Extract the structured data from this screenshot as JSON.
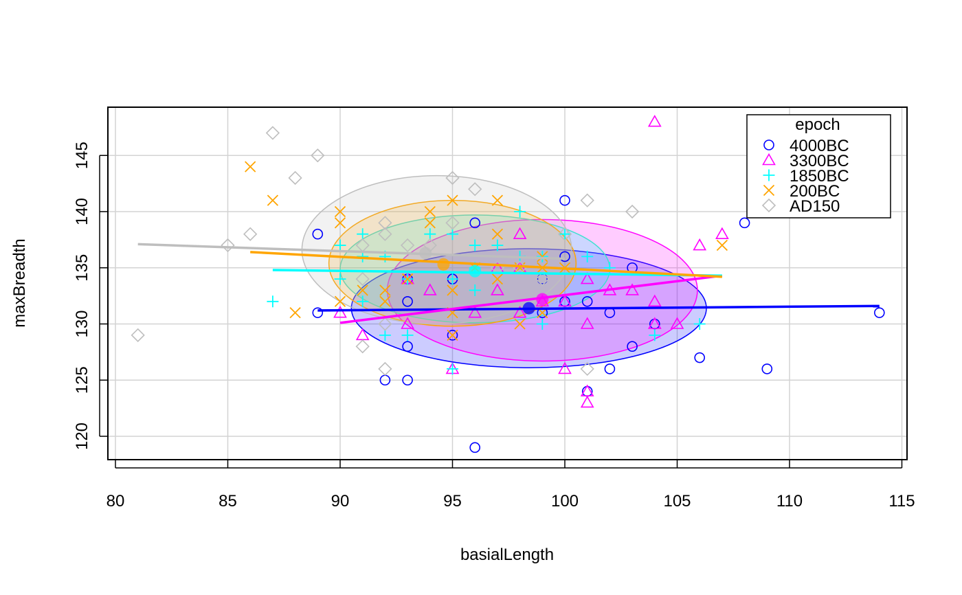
{
  "chart_data": {
    "type": "scatter",
    "xlabel": "basialLength",
    "ylabel": "maxBreadth",
    "xlim": [
      80,
      115
    ],
    "ylim": [
      118,
      149
    ],
    "x_ticks": [
      "80",
      "85",
      "90",
      "95",
      "100",
      "105",
      "110",
      "115"
    ],
    "y_ticks": [
      "120",
      "125",
      "130",
      "135",
      "140",
      "145"
    ],
    "grid": true,
    "legend": {
      "title": "epoch",
      "position": "top-right",
      "entries": [
        "4000BC",
        "3300BC",
        "1850BC",
        "200BC",
        "AD150"
      ]
    },
    "series": [
      {
        "name": "4000BC",
        "color": "#0000FF",
        "marker": "circle",
        "points": [
          [
            89,
            138
          ],
          [
            89,
            131
          ],
          [
            92,
            125
          ],
          [
            93,
            132
          ],
          [
            93,
            128
          ],
          [
            93,
            125
          ],
          [
            93,
            134
          ],
          [
            95,
            134
          ],
          [
            95,
            129
          ],
          [
            96,
            139
          ],
          [
            96,
            119
          ],
          [
            99,
            134
          ],
          [
            99,
            131
          ],
          [
            100,
            141
          ],
          [
            100,
            136
          ],
          [
            100,
            132
          ],
          [
            101,
            132
          ],
          [
            101,
            124
          ],
          [
            102,
            131
          ],
          [
            102,
            126
          ],
          [
            103,
            135
          ],
          [
            103,
            128
          ],
          [
            104,
            130
          ],
          [
            106,
            127
          ],
          [
            108,
            139
          ],
          [
            109,
            126
          ],
          [
            114,
            131
          ]
        ],
        "regression": [
          [
            89,
            131.2
          ],
          [
            114,
            131.6
          ]
        ],
        "ellipse": {
          "cx": 98.4,
          "cy": 131.4,
          "rx": 7.9,
          "ry": 5.3
        },
        "mean": [
          98.4,
          131.4
        ]
      },
      {
        "name": "3300BC",
        "color": "#FF00FF",
        "marker": "triangle",
        "points": [
          [
            90,
            131
          ],
          [
            91,
            129
          ],
          [
            93,
            134
          ],
          [
            93,
            130
          ],
          [
            94,
            133
          ],
          [
            95,
            126
          ],
          [
            96,
            131
          ],
          [
            97,
            135
          ],
          [
            97,
            133
          ],
          [
            98,
            131
          ],
          [
            98,
            135
          ],
          [
            98,
            138
          ],
          [
            99,
            132
          ],
          [
            100,
            132
          ],
          [
            100,
            126
          ],
          [
            101,
            134
          ],
          [
            101,
            130
          ],
          [
            101,
            124
          ],
          [
            101,
            123
          ],
          [
            102,
            133
          ],
          [
            103,
            133
          ],
          [
            104,
            148
          ],
          [
            104,
            132
          ],
          [
            104,
            130
          ],
          [
            105,
            130
          ],
          [
            106,
            137
          ],
          [
            107,
            138
          ]
        ],
        "regression": [
          [
            90,
            130.1
          ],
          [
            107,
            134.3
          ]
        ],
        "ellipse": {
          "cx": 99.0,
          "cy": 133.0,
          "rx": 6.9,
          "ry": 6.3
        },
        "mean": [
          99.0,
          132.2
        ]
      },
      {
        "name": "1850BC",
        "color": "#00FFFF",
        "marker": "plus",
        "points": [
          [
            87,
            132
          ],
          [
            90,
            137
          ],
          [
            90,
            134
          ],
          [
            91,
            138
          ],
          [
            91,
            136
          ],
          [
            91,
            132
          ],
          [
            92,
            136
          ],
          [
            92,
            129
          ],
          [
            93,
            134
          ],
          [
            93,
            129
          ],
          [
            94,
            138
          ],
          [
            95,
            138
          ],
          [
            95,
            134
          ],
          [
            95,
            126
          ],
          [
            96,
            137
          ],
          [
            96,
            135
          ],
          [
            96,
            133
          ],
          [
            97,
            137
          ],
          [
            98,
            140
          ],
          [
            98,
            136
          ],
          [
            99,
            136
          ],
          [
            99,
            130
          ],
          [
            100,
            138
          ],
          [
            101,
            136
          ],
          [
            102,
            135
          ],
          [
            104,
            129
          ],
          [
            106,
            130
          ]
        ],
        "regression": [
          [
            87,
            134.8
          ],
          [
            107,
            134.3
          ]
        ],
        "ellipse": {
          "cx": 96.0,
          "cy": 134.9,
          "rx": 6.0,
          "ry": 4.8
        },
        "mean": [
          96.0,
          134.7
        ]
      },
      {
        "name": "200BC",
        "color": "#FFA500",
        "marker": "cross",
        "points": [
          [
            86,
            144
          ],
          [
            87,
            141
          ],
          [
            88,
            131
          ],
          [
            90,
            140
          ],
          [
            90,
            139
          ],
          [
            90,
            132
          ],
          [
            91,
            133
          ],
          [
            92,
            133
          ],
          [
            92,
            132
          ],
          [
            93,
            134
          ],
          [
            94,
            140
          ],
          [
            94,
            139
          ],
          [
            95,
            141
          ],
          [
            95,
            133
          ],
          [
            95,
            131
          ],
          [
            95,
            129
          ],
          [
            96,
            135
          ],
          [
            97,
            141
          ],
          [
            97,
            138
          ],
          [
            97,
            134
          ],
          [
            98,
            135
          ],
          [
            98,
            130
          ],
          [
            99,
            136
          ],
          [
            99,
            135
          ],
          [
            99,
            131
          ],
          [
            100,
            135
          ],
          [
            107,
            137
          ]
        ],
        "regression": [
          [
            86,
            136.4
          ],
          [
            107,
            134.2
          ]
        ],
        "ellipse": {
          "cx": 95.0,
          "cy": 135.4,
          "rx": 5.5,
          "ry": 5.6
        },
        "mean": [
          94.6,
          135.3
        ]
      },
      {
        "name": "AD150",
        "color": "#BEBEBE",
        "marker": "diamond",
        "points": [
          [
            81,
            129
          ],
          [
            85,
            137
          ],
          [
            86,
            138
          ],
          [
            87,
            147
          ],
          [
            88,
            143
          ],
          [
            89,
            145
          ],
          [
            91,
            137
          ],
          [
            91,
            134
          ],
          [
            91,
            128
          ],
          [
            92,
            139
          ],
          [
            92,
            138
          ],
          [
            92,
            130
          ],
          [
            92,
            126
          ],
          [
            93,
            137
          ],
          [
            94,
            137
          ],
          [
            95,
            143
          ],
          [
            95,
            139
          ],
          [
            96,
            142
          ],
          [
            97,
            135
          ],
          [
            98,
            135
          ],
          [
            99,
            134
          ],
          [
            100,
            138
          ],
          [
            101,
            141
          ],
          [
            101,
            126
          ],
          [
            103,
            140
          ]
        ],
        "regression": [
          [
            81,
            137.1
          ],
          [
            100,
            135.8
          ]
        ],
        "ellipse": {
          "cx": 94.3,
          "cy": 136.6,
          "rx": 6.0,
          "ry": 6.6
        },
        "mean": [
          93.8,
          136.3
        ]
      }
    ]
  }
}
